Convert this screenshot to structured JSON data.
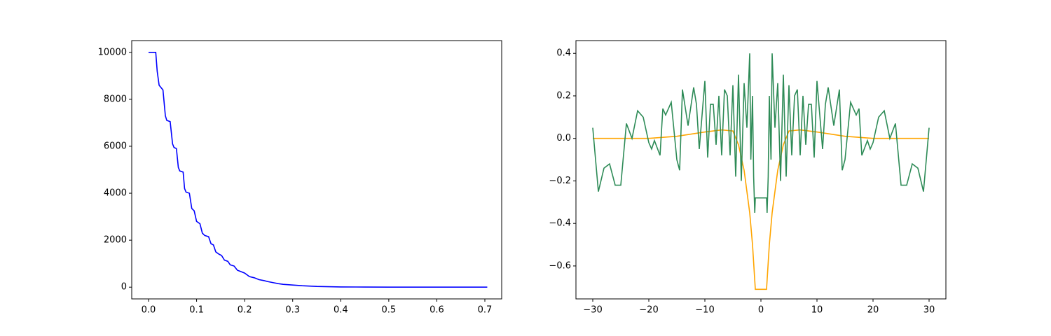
{
  "chart_data": [
    {
      "type": "line",
      "xlim": [
        -0.035,
        0.735
      ],
      "ylim": [
        -500,
        10500
      ],
      "xticks": [
        {
          "value": 0,
          "label": "0.0"
        },
        {
          "value": 0.1,
          "label": "0.1"
        },
        {
          "value": 0.2,
          "label": "0.2"
        },
        {
          "value": 0.3,
          "label": "0.3"
        },
        {
          "value": 0.4,
          "label": "0.4"
        },
        {
          "value": 0.5,
          "label": "0.5"
        },
        {
          "value": 0.6,
          "label": "0.6"
        },
        {
          "value": 0.7,
          "label": "0.7"
        }
      ],
      "yticks": [
        0,
        2000,
        4000,
        6000,
        8000,
        10000
      ],
      "series": [
        {
          "color": "#0000ff",
          "x": [
            0,
            0.01,
            0.015,
            0.018,
            0.022,
            0.03,
            0.035,
            0.038,
            0.045,
            0.05,
            0.053,
            0.058,
            0.062,
            0.065,
            0.072,
            0.075,
            0.078,
            0.085,
            0.09,
            0.095,
            0.1,
            0.107,
            0.112,
            0.117,
            0.125,
            0.13,
            0.135,
            0.14,
            0.147,
            0.152,
            0.158,
            0.165,
            0.17,
            0.178,
            0.185,
            0.19,
            0.2,
            0.21,
            0.22,
            0.23,
            0.24,
            0.25,
            0.26,
            0.27,
            0.28,
            0.3,
            0.32,
            0.35,
            0.4,
            0.45,
            0.5,
            0.6,
            0.705
          ],
          "values": [
            10000,
            10000,
            10000,
            9200,
            8600,
            8400,
            7300,
            7100,
            7050,
            6100,
            5950,
            5900,
            5100,
            4950,
            4900,
            4200,
            4050,
            4000,
            3350,
            3250,
            2800,
            2700,
            2300,
            2200,
            2150,
            1850,
            1800,
            1500,
            1400,
            1350,
            1150,
            1100,
            950,
            900,
            720,
            680,
            600,
            450,
            400,
            320,
            280,
            230,
            190,
            150,
            120,
            90,
            60,
            30,
            10,
            5,
            2,
            0,
            0
          ]
        }
      ]
    },
    {
      "type": "line",
      "xlim": [
        -33,
        33
      ],
      "ylim": [
        -0.755,
        0.46
      ],
      "xticks": [
        {
          "value": -30,
          "label": "−30"
        },
        {
          "value": -20,
          "label": "−20"
        },
        {
          "value": -10,
          "label": "−10"
        },
        0,
        10,
        20,
        30
      ],
      "yticks": [
        {
          "value": -0.6,
          "label": "−0.6"
        },
        {
          "value": -0.4,
          "label": "−0.4"
        },
        {
          "value": -0.2,
          "label": "−0.2"
        },
        {
          "value": 0,
          "label": "0.0"
        },
        0.2,
        0.4
      ],
      "series": [
        {
          "color": "#ffa500",
          "x": [
            -30,
            -25,
            -20,
            -15,
            -10,
            -7,
            -5,
            -4,
            -3,
            -2,
            -1.5,
            -1,
            1,
            1.5,
            2,
            3,
            4,
            5,
            7,
            10,
            15,
            20,
            25,
            30
          ],
          "values": [
            0,
            0,
            0,
            0.01,
            0.03,
            0.04,
            0.035,
            -0.03,
            -0.15,
            -0.35,
            -0.5,
            -0.71,
            -0.71,
            -0.5,
            -0.35,
            -0.15,
            -0.03,
            0.035,
            0.04,
            0.03,
            0.01,
            0,
            0,
            0
          ]
        },
        {
          "color": "#2e8b57",
          "x": [
            -30,
            -29,
            -28,
            -27,
            -26,
            -25,
            -24,
            -23,
            -22,
            -21,
            -20,
            -19.5,
            -19,
            -18,
            -17.5,
            -17,
            -16,
            -15,
            -14.5,
            -14,
            -13,
            -12,
            -11.5,
            -11,
            -10,
            -9.5,
            -9,
            -8.5,
            -8,
            -7.5,
            -7,
            -6.5,
            -6,
            -5.5,
            -5,
            -4.5,
            -4,
            -3.5,
            -3,
            -2.5,
            -2,
            -1.8,
            -1.5,
            -1.3,
            -1.1,
            -1,
            1,
            1.1,
            1.3,
            1.5,
            1.8,
            2,
            2.5,
            3,
            3.5,
            4,
            4.5,
            5,
            5.5,
            6,
            6.5,
            7,
            7.5,
            8,
            8.5,
            9,
            9.5,
            10,
            11,
            11.5,
            12,
            13,
            14,
            14.5,
            15,
            16,
            17,
            17.5,
            18,
            19,
            19.5,
            20,
            21,
            22,
            23,
            24,
            25,
            26,
            27,
            28,
            29,
            30
          ],
          "values": [
            0.05,
            -0.25,
            -0.14,
            -0.12,
            -0.22,
            -0.22,
            0.07,
            0,
            0.13,
            0.1,
            -0.02,
            -0.05,
            -0.01,
            -0.08,
            0.14,
            0.11,
            0.17,
            -0.1,
            -0.15,
            0.23,
            0.06,
            0.24,
            0.16,
            -0.05,
            0.27,
            -0.09,
            0.16,
            0.16,
            -0.03,
            0.2,
            -0.08,
            0.23,
            0.2,
            -0.08,
            0.25,
            -0.18,
            0.3,
            -0.2,
            0.26,
            0.05,
            0.4,
            -0.1,
            0.2,
            -0.18,
            -0.35,
            -0.28,
            -0.28,
            -0.35,
            -0.18,
            0.2,
            -0.1,
            0.4,
            0.05,
            0.26,
            -0.2,
            0.3,
            -0.18,
            0.25,
            -0.08,
            0.2,
            0.23,
            -0.08,
            0.2,
            -0.03,
            0.16,
            0.16,
            -0.09,
            0.27,
            -0.05,
            0.16,
            0.24,
            0.06,
            0.23,
            -0.15,
            -0.1,
            0.17,
            0.11,
            0.14,
            -0.08,
            -0.01,
            -0.05,
            -0.02,
            0.1,
            0.13,
            0,
            0.07,
            -0.22,
            -0.22,
            -0.12,
            -0.14,
            -0.25,
            0.05
          ]
        }
      ]
    }
  ]
}
